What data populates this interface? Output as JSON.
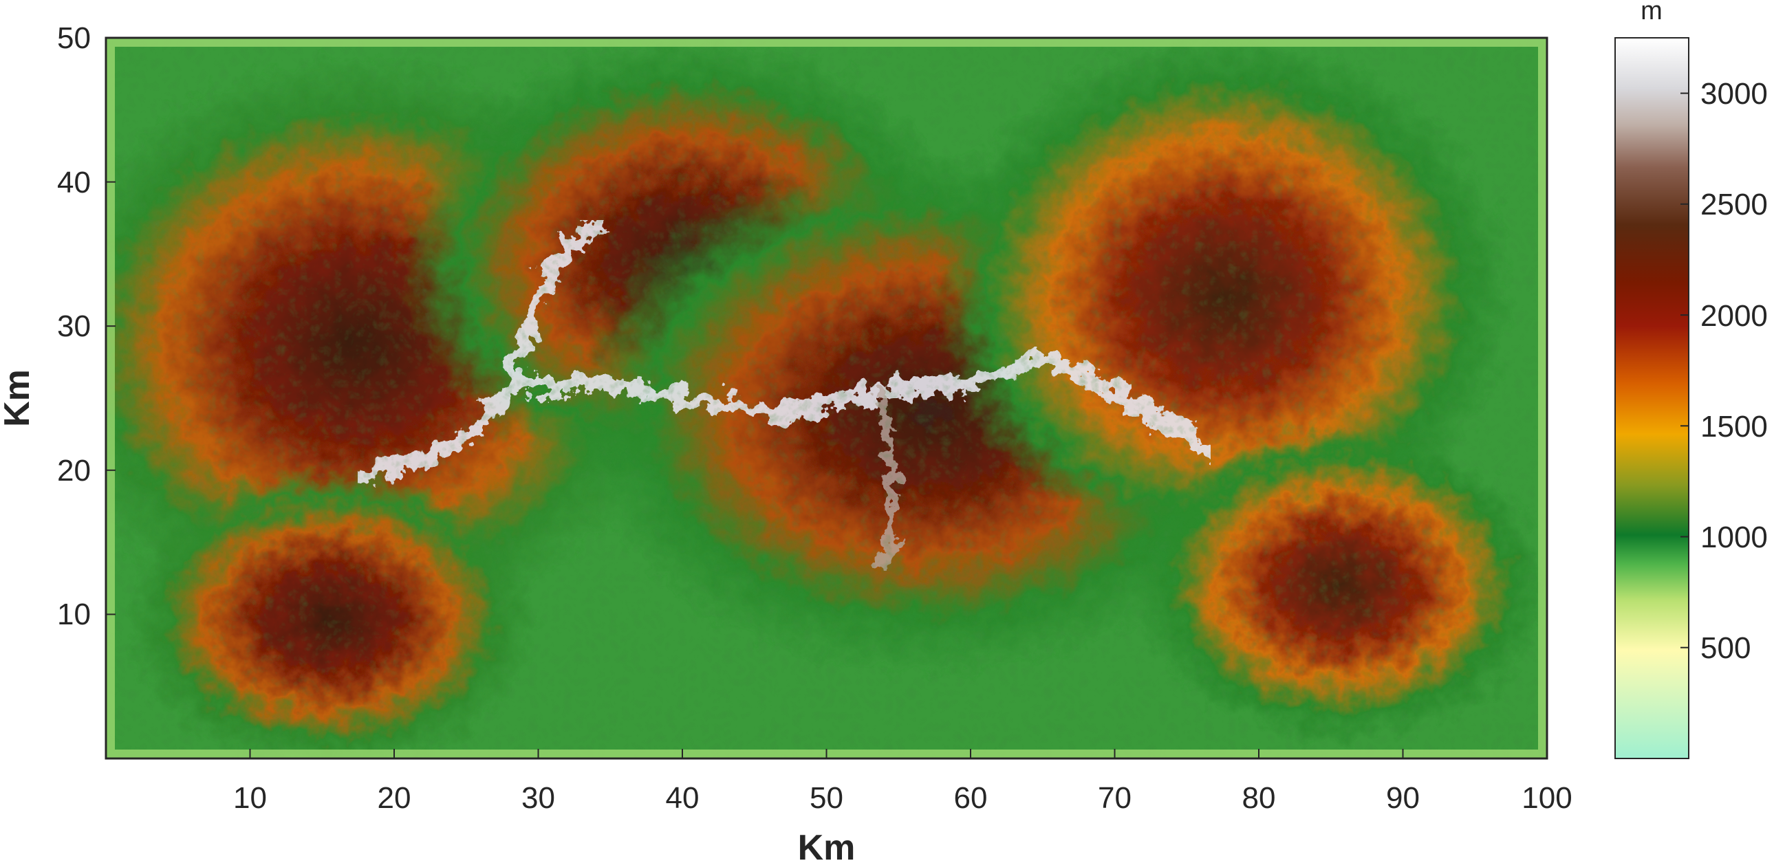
{
  "map": {
    "x_axis": {
      "label": "Km",
      "range": [
        0,
        100
      ],
      "ticks": [
        "10",
        "20",
        "30",
        "40",
        "50",
        "60",
        "70",
        "80",
        "90",
        "100"
      ]
    },
    "y_axis": {
      "label": "Km",
      "range": [
        0,
        50
      ],
      "ticks": [
        "10",
        "20",
        "30",
        "40",
        "50"
      ]
    },
    "colorbar": {
      "unit": "m",
      "range": [
        0,
        3250
      ],
      "ticks": [
        "500",
        "1000",
        "1500",
        "2000",
        "2500",
        "3000"
      ],
      "colors": [
        "#9ff0d0",
        "#fffbb0",
        "#b8e070",
        "#4fb44a",
        "#0e7a2a",
        "#8a9a20",
        "#f0a800",
        "#d86000",
        "#9a1a08",
        "#7a1a00",
        "#5a2a10",
        "#8a6050",
        "#c0b0a8",
        "#d8d8dc",
        "#ffffff"
      ]
    },
    "terrain": {
      "colors": {
        "low": "#8fd15a",
        "green": "#1f8f33",
        "orange": "#e08a10",
        "red_brown": "#8a2a08",
        "dark": "#3a1e10",
        "ridge": "#e8e8ee"
      }
    }
  }
}
